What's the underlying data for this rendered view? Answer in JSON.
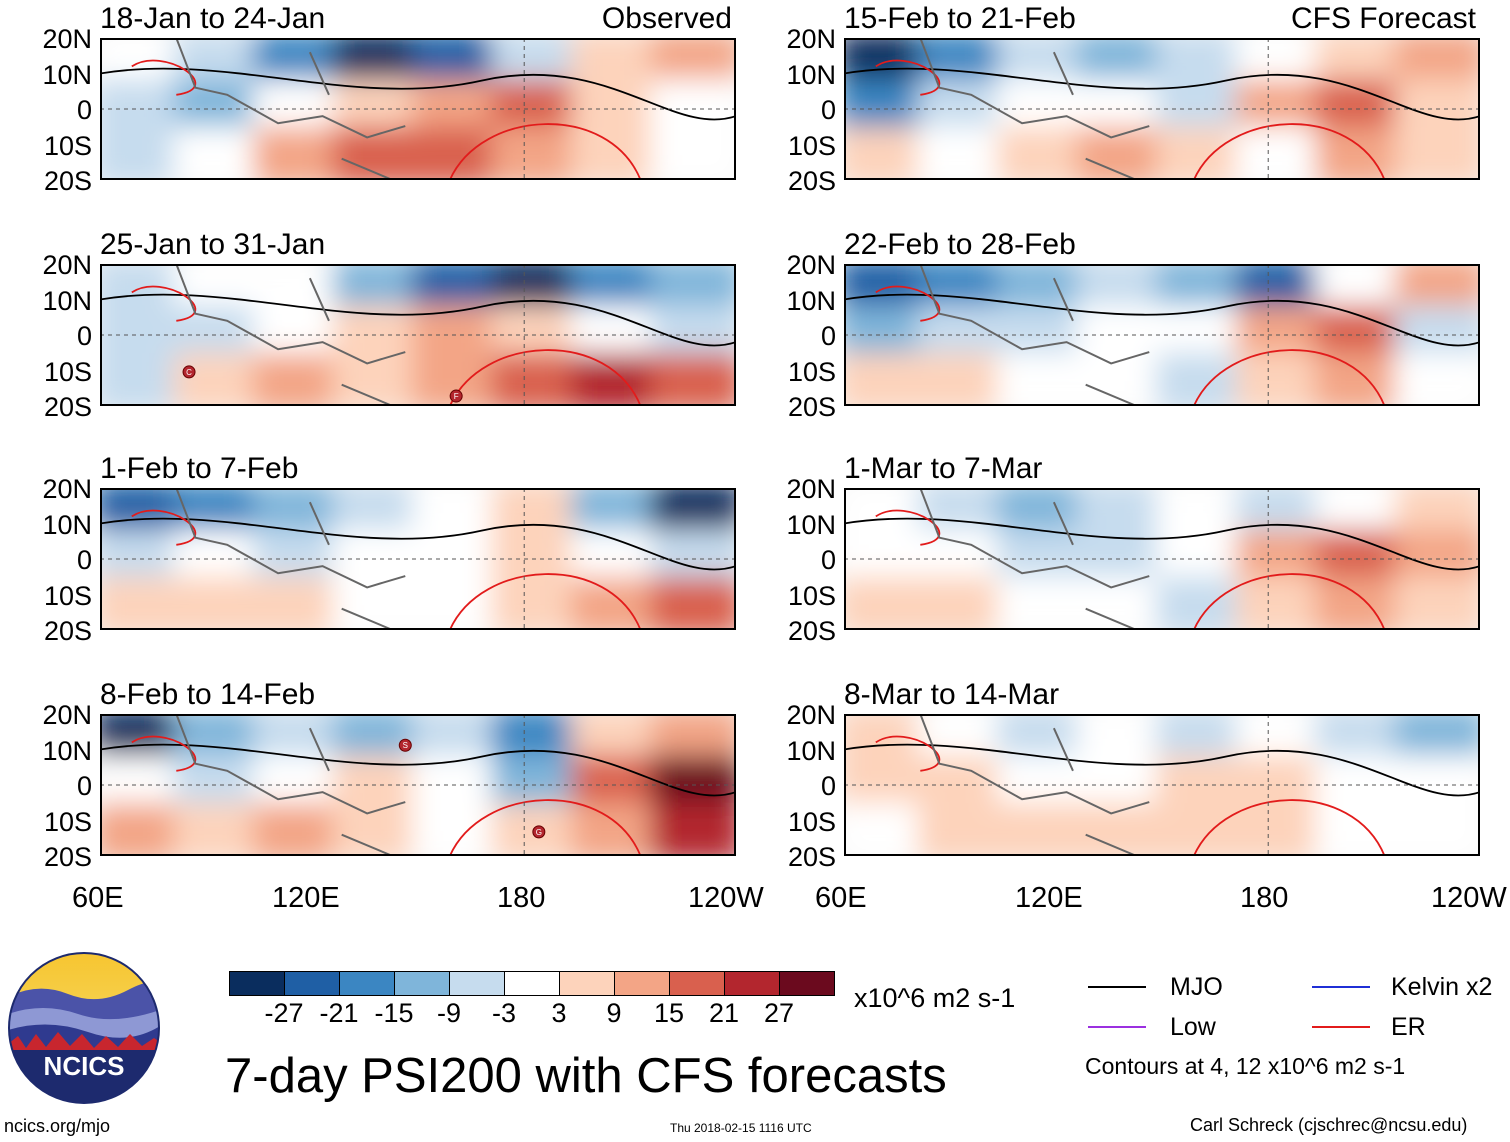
{
  "panels": [
    {
      "title": "18-Jan to 24-Jan",
      "tag": "Observed"
    },
    {
      "title": "15-Feb to 21-Feb",
      "tag": "CFS Forecast"
    },
    {
      "title": "25-Jan to 31-Jan",
      "tag": ""
    },
    {
      "title": "22-Feb to 28-Feb",
      "tag": ""
    },
    {
      "title": "1-Feb to 7-Feb",
      "tag": ""
    },
    {
      "title": "1-Mar to 7-Mar",
      "tag": ""
    },
    {
      "title": "8-Feb to 14-Feb",
      "tag": ""
    },
    {
      "title": "8-Mar to 14-Mar",
      "tag": ""
    }
  ],
  "lat_labels": [
    "20N",
    "10N",
    "0",
    "10S",
    "20S"
  ],
  "lon_labels": [
    "60E",
    "120E",
    "180",
    "120W"
  ],
  "colorbar": {
    "colors": [
      "#0a2d5e",
      "#1f5fa5",
      "#3b86c2",
      "#7fb5da",
      "#c6dcee",
      "#ffffff",
      "#fdd3bb",
      "#f3a586",
      "#d9604e",
      "#b3262e",
      "#6b0a1e"
    ],
    "labels": [
      "-27",
      "-21",
      "-15",
      "-9",
      "-3",
      "3",
      "9",
      "15",
      "21",
      "27"
    ],
    "units": "x10^6 m2 s-1"
  },
  "legend": {
    "mjo": {
      "label": "MJO",
      "color": "#000000"
    },
    "kelvin": {
      "label": "Kelvin x2",
      "color": "#1f2fd6"
    },
    "low": {
      "label": "Low",
      "color": "#9b30e0"
    },
    "er": {
      "label": "ER",
      "color": "#e21b1b"
    },
    "contours_note": "Contours at 4, 12 x10^6 m2 s-1"
  },
  "main_title": "7-day PSI200 with CFS forecasts",
  "logo_text": "NCICS",
  "site": "ncics.org/mjo",
  "timestamp": "Thu 2018-02-15 1116 UTC",
  "author": "Carl Schreck (cjschrec@ncsu.edu)",
  "cyclones": [
    {
      "panel": 2,
      "letter": "C"
    },
    {
      "panel": 2,
      "letter": "F"
    },
    {
      "panel": 6,
      "letter": "S"
    },
    {
      "panel": 6,
      "letter": "G"
    }
  ]
}
